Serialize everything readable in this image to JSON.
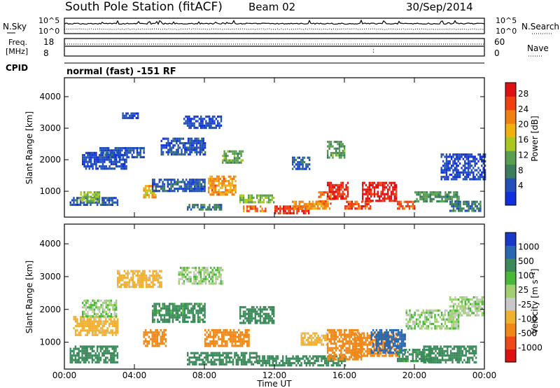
{
  "header": {
    "station": "South Pole Station (fitACF)",
    "beam": "Beam 02",
    "date": "30/Sep/2014"
  },
  "status_panels": {
    "noise": {
      "left_label": "N.Sky",
      "right_label": "N.Search",
      "left_ticks": [
        "10^5",
        "10^0"
      ],
      "right_ticks": [
        "10^5",
        "10^0"
      ]
    },
    "frequency": {
      "left_label_1": "Freq.",
      "left_label_2": "[MHz]",
      "right_label": "Nave",
      "left_ticks": [
        "18",
        "8"
      ],
      "right_ticks": [
        "60",
        "0"
      ]
    },
    "cpid": {
      "label": "CPID",
      "value": "normal (fast) -151 RF"
    }
  },
  "colors": {
    "power_scale": [
      "#1030e0",
      "#2050b8",
      "#3a7e5e",
      "#58a050",
      "#a8c820",
      "#f0b010",
      "#f08010",
      "#f04010",
      "#e01010"
    ],
    "velocity_scale": [
      "#e01010",
      "#f04818",
      "#f08818",
      "#f0b030",
      "#c8c8c8",
      "#a0d070",
      "#48b838",
      "#3a8a5a",
      "#2868b0",
      "#1838c8"
    ]
  },
  "chart_data": [
    {
      "type": "heatmap",
      "name": "power",
      "ylabel": "Slant Range [km]",
      "xlabel": "",
      "x_range_hours": [
        0,
        24
      ],
      "ylim": [
        180,
        4600
      ],
      "y_ticks": [
        "1000",
        "2000",
        "3000",
        "4000"
      ],
      "x_ticks": [
        "00:00",
        "04:00",
        "08:00",
        "12:00",
        "16:00",
        "20:00",
        "00:00"
      ],
      "colorbar": {
        "label": "Power [dB]",
        "min": 0,
        "max": 32,
        "ticks": [
          "28",
          "24",
          "20",
          "16",
          "12",
          "8",
          "4"
        ]
      },
      "regions": [
        {
          "t": [
            0.3,
            3.0
          ],
          "r": [
            560,
            820
          ],
          "v": 6
        },
        {
          "t": [
            0.9,
            2.0
          ],
          "r": [
            700,
            1000
          ],
          "v": 14
        },
        {
          "t": [
            1.0,
            3.5
          ],
          "r": [
            1750,
            2250
          ],
          "v": 4
        },
        {
          "t": [
            2.0,
            4.5
          ],
          "r": [
            2050,
            2400
          ],
          "v": 5
        },
        {
          "t": [
            3.2,
            4.2
          ],
          "r": [
            3300,
            3500
          ],
          "v": 4
        },
        {
          "t": [
            4.5,
            5.2
          ],
          "r": [
            800,
            1200
          ],
          "v": 20
        },
        {
          "t": [
            5.0,
            8.0
          ],
          "r": [
            1000,
            1400
          ],
          "v": 6
        },
        {
          "t": [
            5.5,
            8.0
          ],
          "r": [
            2200,
            2700
          ],
          "v": 5
        },
        {
          "t": [
            6.8,
            9.0
          ],
          "r": [
            3000,
            3400
          ],
          "v": 4
        },
        {
          "t": [
            7.0,
            9.0
          ],
          "r": [
            400,
            600
          ],
          "v": 8
        },
        {
          "t": [
            8.2,
            9.8
          ],
          "r": [
            900,
            1500
          ],
          "v": 22
        },
        {
          "t": [
            9.0,
            10.2
          ],
          "r": [
            1900,
            2300
          ],
          "v": 12
        },
        {
          "t": [
            10.0,
            12.0
          ],
          "r": [
            650,
            900
          ],
          "v": 14
        },
        {
          "t": [
            10.2,
            11.5
          ],
          "r": [
            400,
            550
          ],
          "v": 24
        },
        {
          "t": [
            12.0,
            14.0
          ],
          "r": [
            300,
            550
          ],
          "v": 28
        },
        {
          "t": [
            13.0,
            15.2
          ],
          "r": [
            450,
            700
          ],
          "v": 22
        },
        {
          "t": [
            14.5,
            15.5
          ],
          "r": [
            600,
            1000
          ],
          "v": 24
        },
        {
          "t": [
            15.0,
            16.2
          ],
          "r": [
            800,
            1300
          ],
          "v": 29
        },
        {
          "t": [
            16.0,
            17.5
          ],
          "r": [
            450,
            700
          ],
          "v": 26
        },
        {
          "t": [
            17.0,
            19.0
          ],
          "r": [
            700,
            1300
          ],
          "v": 30
        },
        {
          "t": [
            19.0,
            20.0
          ],
          "r": [
            450,
            700
          ],
          "v": 26
        },
        {
          "t": [
            20.0,
            22.5
          ],
          "r": [
            700,
            1000
          ],
          "v": 10
        },
        {
          "t": [
            21.5,
            24.0
          ],
          "r": [
            1400,
            2200
          ],
          "v": 4
        },
        {
          "t": [
            22.0,
            23.8
          ],
          "r": [
            400,
            700
          ],
          "v": 8
        },
        {
          "t": [
            13.0,
            14.0
          ],
          "r": [
            1700,
            2100
          ],
          "v": 6
        },
        {
          "t": [
            15.0,
            16.0
          ],
          "r": [
            2100,
            2600
          ],
          "v": 12
        }
      ]
    },
    {
      "type": "heatmap",
      "name": "velocity",
      "ylabel": "Slant Range [km]",
      "xlabel": "Time UT",
      "x_range_hours": [
        0,
        24
      ],
      "ylim": [
        180,
        4600
      ],
      "y_ticks": [
        "1000",
        "2000",
        "3000",
        "4000"
      ],
      "x_ticks": [
        "00:00",
        "04:00",
        "08:00",
        "12:00",
        "16:00",
        "20:00",
        "00:00"
      ],
      "colorbar": {
        "label": "Velocity [m s⁻¹]",
        "ticks": [
          "1000",
          "500",
          "100",
          "25",
          "-25",
          "-100",
          "-500",
          "-1000"
        ]
      },
      "regions": [
        {
          "t": [
            0.3,
            3.0
          ],
          "r": [
            400,
            900
          ],
          "v": 200
        },
        {
          "t": [
            0.5,
            3.0
          ],
          "r": [
            1200,
            1800
          ],
          "v": -150
        },
        {
          "t": [
            1.0,
            3.0
          ],
          "r": [
            1800,
            2300
          ],
          "v": 0
        },
        {
          "t": [
            3.0,
            5.5
          ],
          "r": [
            2700,
            3200
          ],
          "v": -150
        },
        {
          "t": [
            4.5,
            5.8
          ],
          "r": [
            900,
            1400
          ],
          "v": -600
        },
        {
          "t": [
            5.0,
            8.0
          ],
          "r": [
            1600,
            2200
          ],
          "v": 150
        },
        {
          "t": [
            6.5,
            9.0
          ],
          "r": [
            2800,
            3300
          ],
          "v": 0
        },
        {
          "t": [
            7.0,
            11.0
          ],
          "r": [
            300,
            700
          ],
          "v": 300
        },
        {
          "t": [
            8.0,
            10.5
          ],
          "r": [
            900,
            1400
          ],
          "v": -600
        },
        {
          "t": [
            10.0,
            12.0
          ],
          "r": [
            1600,
            2100
          ],
          "v": 200
        },
        {
          "t": [
            11.0,
            16.0
          ],
          "r": [
            300,
            600
          ],
          "v": 250
        },
        {
          "t": [
            13.5,
            15.0
          ],
          "r": [
            900,
            1300
          ],
          "v": -150
        },
        {
          "t": [
            15.0,
            17.0
          ],
          "r": [
            500,
            1400
          ],
          "v": -600
        },
        {
          "t": [
            16.5,
            19.0
          ],
          "r": [
            600,
            1300
          ],
          "v": -800
        },
        {
          "t": [
            17.5,
            19.5
          ],
          "r": [
            700,
            1400
          ],
          "v": 700
        },
        {
          "t": [
            19.0,
            21.0
          ],
          "r": [
            400,
            800
          ],
          "v": 150
        },
        {
          "t": [
            19.5,
            22.5
          ],
          "r": [
            1400,
            2000
          ],
          "v": 0
        },
        {
          "t": [
            20.5,
            23.5
          ],
          "r": [
            400,
            900
          ],
          "v": 300
        },
        {
          "t": [
            22.0,
            24.0
          ],
          "r": [
            1800,
            2400
          ],
          "v": 0
        }
      ]
    }
  ]
}
